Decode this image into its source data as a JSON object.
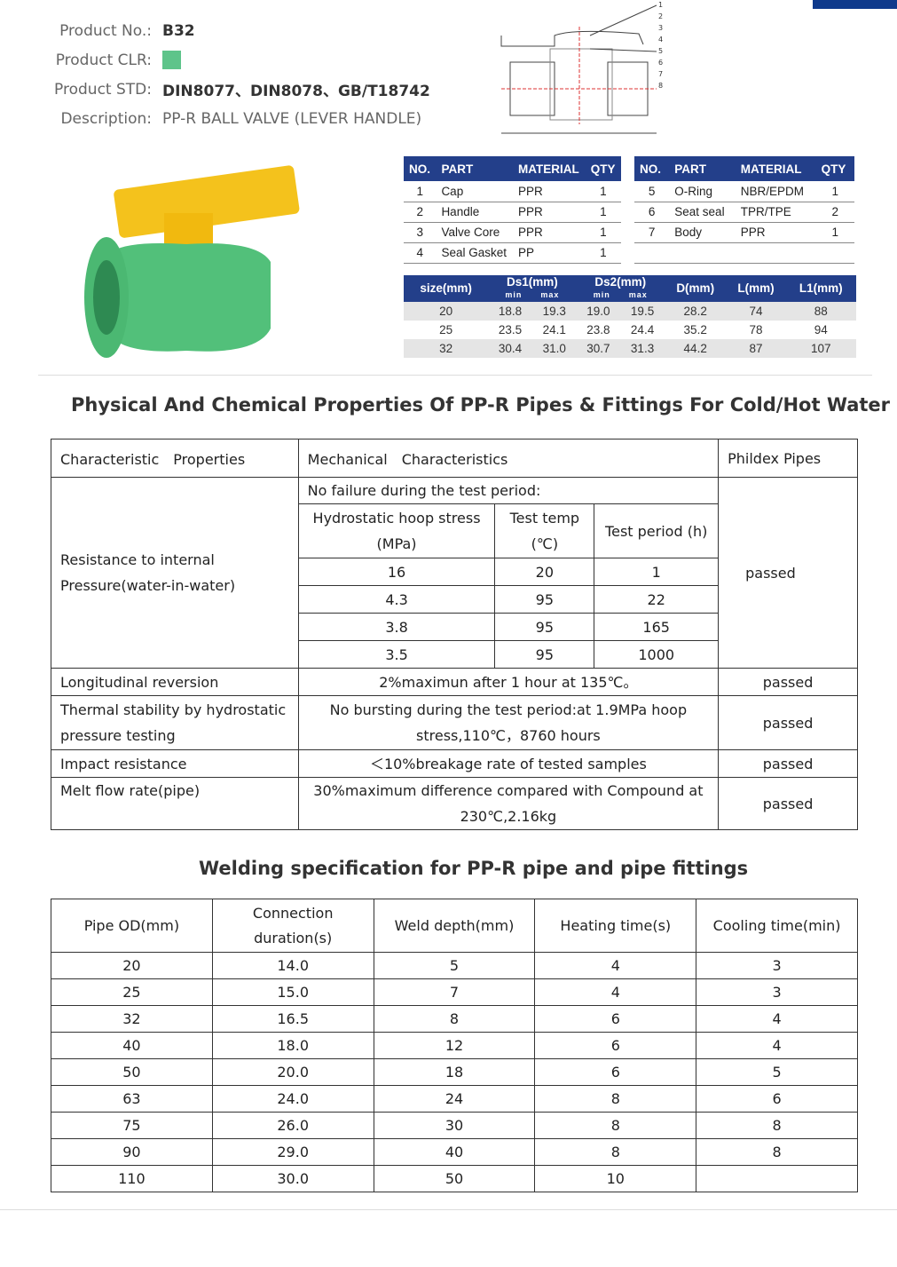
{
  "product": {
    "no_label": "Product No.:",
    "no": "B32",
    "clr_label": "Product CLR:",
    "clr_color": "#5ec48a",
    "std_label": "Product STD:",
    "std": "DIN8077、DIN8078、GB/T18742",
    "desc_label": "Description:",
    "desc": "PP-R BALL VALVE (LEVER HANDLE)"
  },
  "accent": "#233f8a",
  "parts": {
    "headers": [
      "NO.",
      "PART",
      "MATERIAL",
      "QTY"
    ],
    "left": [
      [
        "1",
        "Cap",
        "PPR",
        "1"
      ],
      [
        "2",
        "Handle",
        "PPR",
        "1"
      ],
      [
        "3",
        "Valve Core",
        "PPR",
        "1"
      ],
      [
        "4",
        "Seal Gasket",
        "PP",
        "1"
      ]
    ],
    "right": [
      [
        "5",
        "O-Ring",
        "NBR/EPDM",
        "1"
      ],
      [
        "6",
        "Seat seal",
        "TPR/TPE",
        "2"
      ],
      [
        "7",
        "Body",
        "PPR",
        "1"
      ]
    ]
  },
  "drawing_labels": [
    "1",
    "2",
    "3",
    "4",
    "5",
    "6",
    "7",
    "8"
  ],
  "sizes": {
    "headers": [
      "size(mm)",
      "Ds1(mm)",
      "Ds2(mm)",
      "D(mm)",
      "L(mm)",
      "L1(mm)"
    ],
    "min": "min",
    "max": "max",
    "rows": [
      [
        "20",
        "18.8",
        "19.3",
        "19.0",
        "19.5",
        "28.2",
        "74",
        "88"
      ],
      [
        "25",
        "23.5",
        "24.1",
        "23.8",
        "24.4",
        "35.2",
        "78",
        "94"
      ],
      [
        "32",
        "30.4",
        "31.0",
        "30.7",
        "31.3",
        "44.2",
        "87",
        "107"
      ]
    ]
  },
  "phys": {
    "title": "Physical And Chemical Properties Of PP-R Pipes & Fittings For Cold/Hot Water",
    "h1": "Characteristic　Properties",
    "h2": "Mechanical　Characteristics",
    "h3": "Phildex Pipes",
    "res_label": "Resistance to internal Pressure(water-in-water)",
    "no_failure": "No failure during the test period:",
    "sub_h": [
      "Hydrostatic hoop stress (MPa)",
      "Test temp (℃)",
      "Test period (h)"
    ],
    "res_rows": [
      [
        "16",
        "20",
        "1"
      ],
      [
        "4.3",
        "95",
        "22"
      ],
      [
        "3.8",
        "95",
        "165"
      ],
      [
        "3.5",
        "95",
        "1000"
      ]
    ],
    "passed": "passed",
    "others": [
      [
        "Longitudinal reversion",
        "2%maximun after 1 hour at 135℃。",
        "passed"
      ],
      [
        "Thermal stability by hydrostatic pressure testing",
        "No bursting during the test period:at 1.9MPa hoop stress,110℃，8760 hours",
        "passed"
      ],
      [
        "Impact resistance",
        "＜10%breakage rate of tested samples",
        "passed"
      ],
      [
        "Melt flow rate(pipe)",
        "30%maximum difference compared with Compound at 230℃,2.16kg",
        "passed"
      ]
    ]
  },
  "weld": {
    "title": "Welding specification for PP-R pipe and pipe fittings",
    "headers": [
      "Pipe OD(mm)",
      "Connection duration(s)",
      "Weld depth(mm)",
      "Heating time(s)",
      "Cooling time(min)"
    ],
    "rows": [
      [
        "20",
        "14.0",
        "5",
        "4",
        "3"
      ],
      [
        "25",
        "15.0",
        "7",
        "4",
        "3"
      ],
      [
        "32",
        "16.5",
        "8",
        "6",
        "4"
      ],
      [
        "40",
        "18.0",
        "12",
        "6",
        "4"
      ],
      [
        "50",
        "20.0",
        "18",
        "6",
        "5"
      ],
      [
        "63",
        "24.0",
        "24",
        "8",
        "6"
      ],
      [
        "75",
        "26.0",
        "30",
        "8",
        "8"
      ],
      [
        "90",
        "29.0",
        "40",
        "8",
        "8"
      ],
      [
        "110",
        "30.0",
        "50",
        "10",
        ""
      ]
    ]
  }
}
